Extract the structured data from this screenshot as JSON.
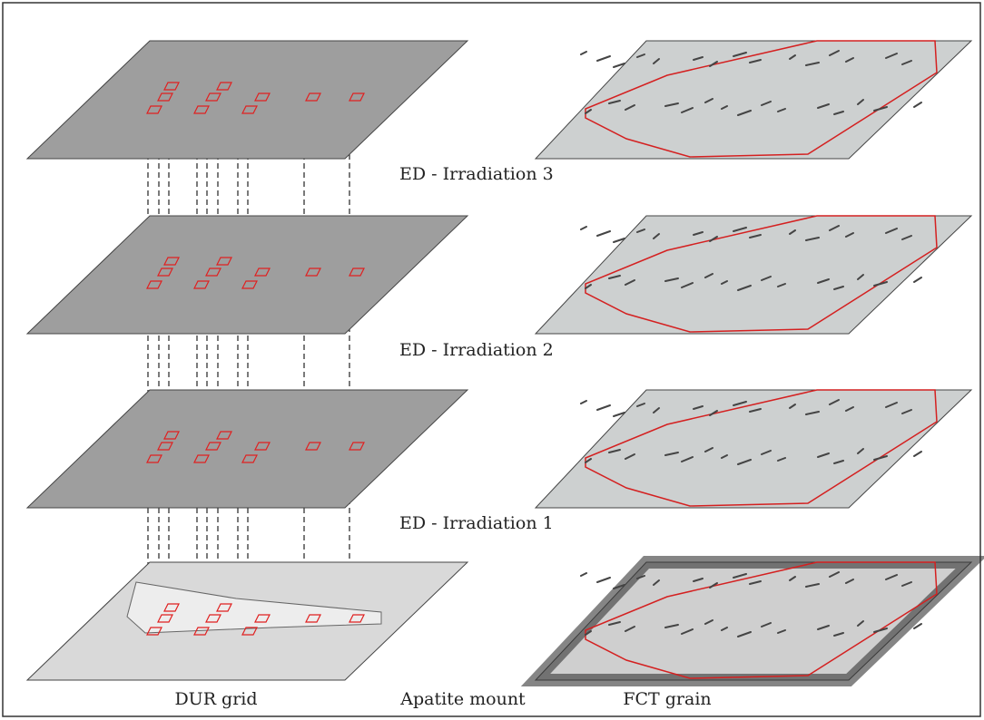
{
  "layers": [
    {
      "label": "ED - Irradiation 3"
    },
    {
      "label": "ED - Irradiation 2"
    },
    {
      "label": "ED - Irradiation 1"
    }
  ],
  "footer": {
    "left": "DUR grid",
    "center": "Apatite mount",
    "right": "FCT grain"
  }
}
